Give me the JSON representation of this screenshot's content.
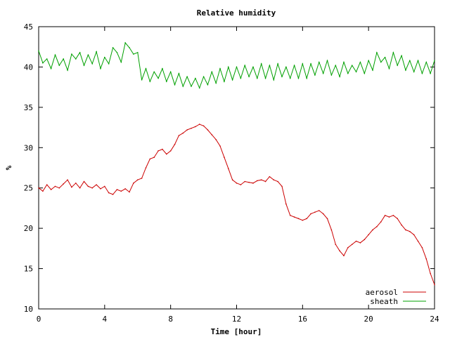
{
  "chart_data": {
    "type": "line",
    "title": "Relative humidity",
    "xlabel": "Time [hour]",
    "ylabel": "%",
    "xlim": [
      0,
      24
    ],
    "ylim": [
      10,
      45
    ],
    "xticks": [
      0,
      4,
      8,
      12,
      16,
      20,
      24
    ],
    "yticks": [
      10,
      15,
      20,
      25,
      30,
      35,
      40,
      45
    ],
    "grid": false,
    "legend_position": "bottom-right",
    "series": [
      {
        "name": "aerosol",
        "color": "#cc0000",
        "x": [
          0,
          0.25,
          0.5,
          0.75,
          1,
          1.25,
          1.5,
          1.75,
          2,
          2.25,
          2.5,
          2.75,
          3,
          3.25,
          3.5,
          3.75,
          4,
          4.25,
          4.5,
          4.75,
          5,
          5.25,
          5.5,
          5.75,
          6,
          6.25,
          6.5,
          6.75,
          7,
          7.25,
          7.5,
          7.75,
          8,
          8.25,
          8.5,
          8.75,
          9,
          9.25,
          9.5,
          9.75,
          10,
          10.25,
          10.5,
          10.75,
          11,
          11.25,
          11.5,
          11.75,
          12,
          12.25,
          12.5,
          12.75,
          13,
          13.25,
          13.5,
          13.75,
          14,
          14.25,
          14.5,
          14.75,
          15,
          15.25,
          15.5,
          15.75,
          16,
          16.25,
          16.5,
          16.75,
          17,
          17.25,
          17.5,
          17.75,
          18,
          18.25,
          18.5,
          18.75,
          19,
          19.25,
          19.5,
          19.75,
          20,
          20.25,
          20.5,
          20.75,
          21,
          21.25,
          21.5,
          21.75,
          22,
          22.25,
          22.5,
          22.75,
          23,
          23.25,
          23.5,
          23.75,
          24
        ],
        "y": [
          25.0,
          24.6,
          25.4,
          24.8,
          25.2,
          25.0,
          25.5,
          26.0,
          25.1,
          25.6,
          25.0,
          25.8,
          25.2,
          25.0,
          25.4,
          24.9,
          25.2,
          24.4,
          24.2,
          24.8,
          24.6,
          24.9,
          24.5,
          25.6,
          26.0,
          26.2,
          27.5,
          28.6,
          28.8,
          29.6,
          29.8,
          29.2,
          29.6,
          30.4,
          31.5,
          31.8,
          32.2,
          32.4,
          32.6,
          32.9,
          32.7,
          32.2,
          31.6,
          31.0,
          30.2,
          28.8,
          27.4,
          26.0,
          25.6,
          25.4,
          25.8,
          25.7,
          25.6,
          25.9,
          26.0,
          25.8,
          26.4,
          26.0,
          25.8,
          25.2,
          23.0,
          21.6,
          21.4,
          21.2,
          21.0,
          21.2,
          21.8,
          22.0,
          22.2,
          21.8,
          21.2,
          19.8,
          18.0,
          17.2,
          16.6,
          17.6,
          18.0,
          18.4,
          18.2,
          18.6,
          19.2,
          19.8,
          20.2,
          20.8,
          21.6,
          21.4,
          21.6,
          21.2,
          20.4,
          19.8,
          19.6,
          19.2,
          18.4,
          17.6,
          16.2,
          14.4,
          13.0
        ],
        "values_are_estimated": true
      },
      {
        "name": "sheath",
        "color": "#00a000",
        "x": [
          0,
          0.25,
          0.5,
          0.75,
          1,
          1.25,
          1.5,
          1.75,
          2,
          2.25,
          2.5,
          2.75,
          3,
          3.25,
          3.5,
          3.75,
          4,
          4.25,
          4.5,
          4.75,
          5,
          5.25,
          5.5,
          5.75,
          6,
          6.25,
          6.5,
          6.75,
          7,
          7.25,
          7.5,
          7.75,
          8,
          8.25,
          8.5,
          8.75,
          9,
          9.25,
          9.5,
          9.75,
          10,
          10.25,
          10.5,
          10.75,
          11,
          11.25,
          11.5,
          11.75,
          12,
          12.25,
          12.5,
          12.75,
          13,
          13.25,
          13.5,
          13.75,
          14,
          14.25,
          14.5,
          14.75,
          15,
          15.25,
          15.5,
          15.75,
          16,
          16.25,
          16.5,
          16.75,
          17,
          17.25,
          17.5,
          17.75,
          18,
          18.25,
          18.5,
          18.75,
          19,
          19.25,
          19.5,
          19.75,
          20,
          20.25,
          20.5,
          20.75,
          21,
          21.25,
          21.5,
          21.75,
          22,
          22.25,
          22.5,
          22.75,
          23,
          23.25,
          23.5,
          23.75,
          24
        ],
        "y": [
          42.0,
          40.5,
          41.0,
          39.8,
          41.5,
          40.2,
          41.0,
          39.6,
          41.6,
          41.0,
          41.8,
          40.2,
          41.5,
          40.4,
          41.9,
          39.8,
          41.2,
          40.4,
          42.4,
          41.8,
          40.6,
          43.0,
          42.4,
          41.6,
          41.8,
          38.4,
          39.8,
          38.2,
          39.4,
          38.6,
          39.8,
          38.2,
          39.4,
          37.8,
          39.2,
          37.6,
          38.8,
          37.6,
          38.6,
          37.4,
          38.8,
          37.8,
          39.4,
          38.0,
          39.8,
          38.2,
          40.0,
          38.4,
          40.0,
          38.6,
          40.2,
          38.8,
          40.0,
          38.6,
          40.4,
          38.6,
          40.2,
          38.4,
          40.4,
          38.8,
          40.0,
          38.6,
          40.2,
          38.6,
          40.4,
          38.6,
          40.4,
          39.0,
          40.6,
          39.2,
          40.8,
          39.0,
          40.2,
          38.8,
          40.6,
          39.2,
          40.2,
          39.4,
          40.6,
          39.2,
          40.8,
          39.6,
          41.8,
          40.6,
          41.2,
          39.8,
          41.8,
          40.2,
          41.4,
          39.6,
          40.8,
          39.4,
          40.8,
          39.2,
          40.6,
          39.2,
          40.8
        ],
        "values_are_estimated": true
      }
    ]
  }
}
